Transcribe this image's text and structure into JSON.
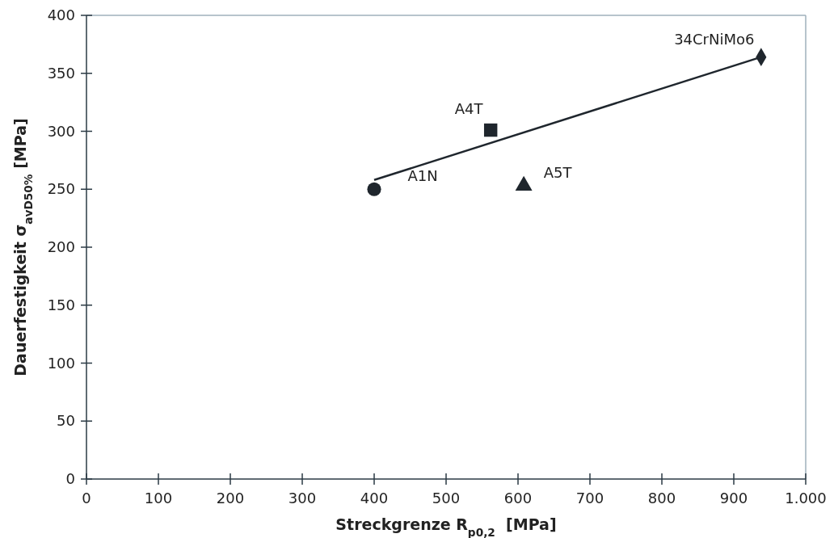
{
  "chart_data": {
    "type": "scatter",
    "xlabel": "Streckgrenze R$_{p0,2}$  [MPa]",
    "ylabel": "Dauerfestigkeit σ$_{avD50%}$ [MPa]",
    "xlim": [
      0,
      1000
    ],
    "ylim": [
      0,
      400
    ],
    "xticks": [
      0,
      100,
      200,
      300,
      400,
      500,
      600,
      700,
      800,
      900,
      {
        "value": 1000,
        "label": "1.000"
      }
    ],
    "yticks": [
      0,
      50,
      100,
      150,
      200,
      250,
      300,
      350,
      400
    ],
    "grid": false,
    "series": [
      {
        "name": "A1N",
        "color": "#1f262d",
        "x": [
          400
        ],
        "values": [
          250
        ],
        "marker": "circle"
      },
      {
        "name": "A4T",
        "color": "#1f262d",
        "x": [
          562
        ],
        "values": [
          301
        ],
        "marker": "square"
      },
      {
        "name": "A5T",
        "color": "#1f262d",
        "x": [
          608
        ],
        "values": [
          253
        ],
        "marker": "triangle"
      },
      {
        "name": "34CrNiMo6",
        "color": "#1f262d",
        "x": [
          938
        ],
        "values": [
          364
        ],
        "marker": "diamond"
      },
      {
        "type": "line",
        "color": "#1f262d",
        "x": [
          400,
          938
        ],
        "values": [
          258,
          364
        ],
        "marker": "none"
      }
    ]
  }
}
